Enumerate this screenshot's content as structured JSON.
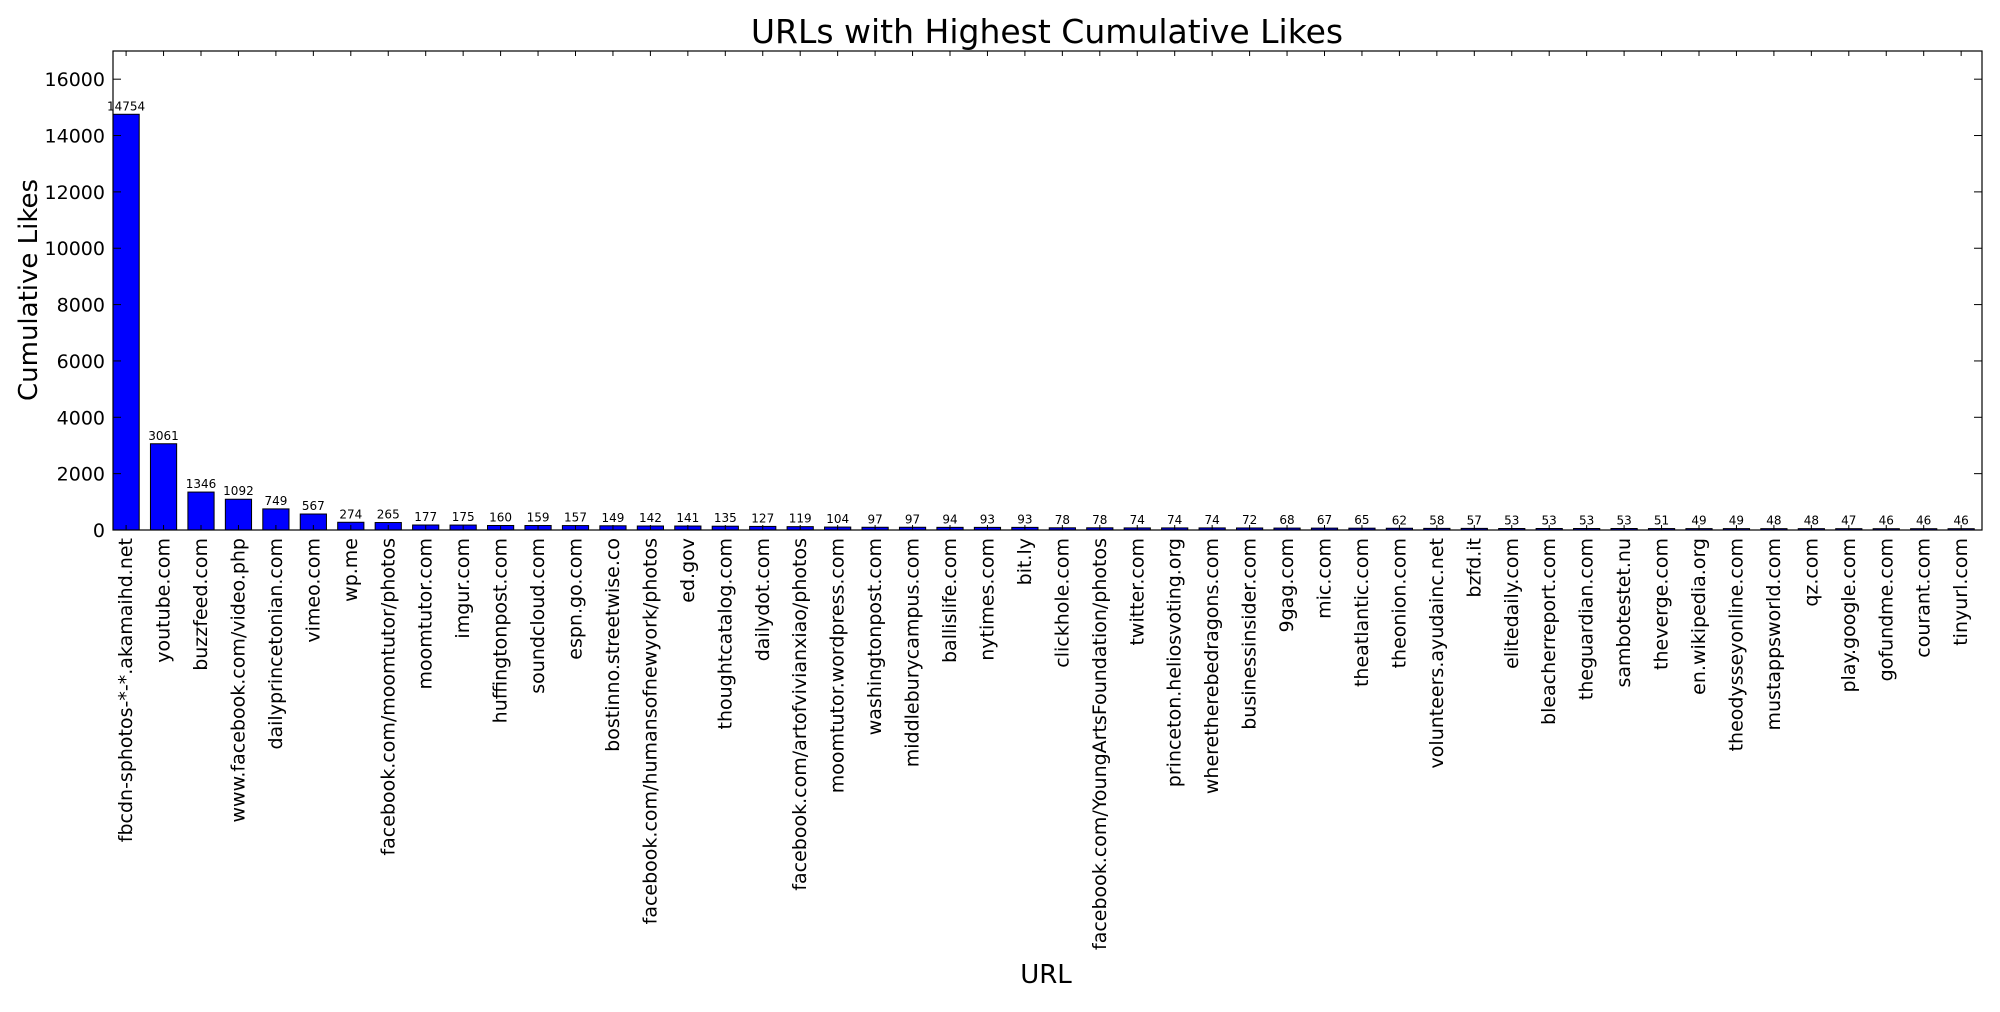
{
  "chart_data": {
    "type": "bar",
    "title": "URLs with Highest Cumulative Likes",
    "xlabel": "URL",
    "ylabel": "Cumulative Likes",
    "ylim": [
      0,
      17000
    ],
    "yticks": [
      0,
      2000,
      4000,
      6000,
      8000,
      10000,
      12000,
      14000,
      16000
    ],
    "grid": false,
    "bar_color": "#0000ff",
    "categories": [
      "fbcdn-sphotos-*-*.akamaihd.net",
      "youtube.com",
      "buzzfeed.com",
      "www.facebook.com/video.php",
      "dailyprincetonian.com",
      "vimeo.com",
      "wp.me",
      "facebook.com/moomtutor/photos",
      "moomtutor.com",
      "imgur.com",
      "huffingtonpost.com",
      "soundcloud.com",
      "espn.go.com",
      "bostinno.streetwise.co",
      "facebook.com/humansofnewyork/photos",
      "ed.gov",
      "thoughtcatalog.com",
      "dailydot.com",
      "facebook.com/artofvivianxiao/photos",
      "moomtutor.wordpress.com",
      "washingtonpost.com",
      "middleburycampus.com",
      "ballislife.com",
      "nytimes.com",
      "bit.ly",
      "clickhole.com",
      "facebook.com/YoungArtsFoundation/photos",
      "twitter.com",
      "princeton.heliosvoting.org",
      "wheretherebedragons.com",
      "businessinsider.com",
      "9gag.com",
      "mic.com",
      "theatlantic.com",
      "theonion.com",
      "volunteers.ayudainc.net",
      "bzfd.it",
      "elitedaily.com",
      "bleacherreport.com",
      "theguardian.com",
      "sambotestet.nu",
      "theverge.com",
      "en.wikipedia.org",
      "theodysseyonline.com",
      "mustappsworld.com",
      "qz.com",
      "play.google.com",
      "gofundme.com",
      "courant.com",
      "tinyurl.com"
    ],
    "values": [
      14754,
      3061,
      1346,
      1092,
      749,
      567,
      274,
      265,
      177,
      175,
      160,
      159,
      157,
      149,
      142,
      141,
      135,
      127,
      119,
      104,
      97,
      97,
      94,
      93,
      93,
      78,
      78,
      74,
      74,
      74,
      72,
      68,
      67,
      65,
      62,
      58,
      57,
      53,
      53,
      53,
      53,
      51,
      49,
      49,
      48,
      48,
      47,
      46,
      46,
      46
    ]
  }
}
